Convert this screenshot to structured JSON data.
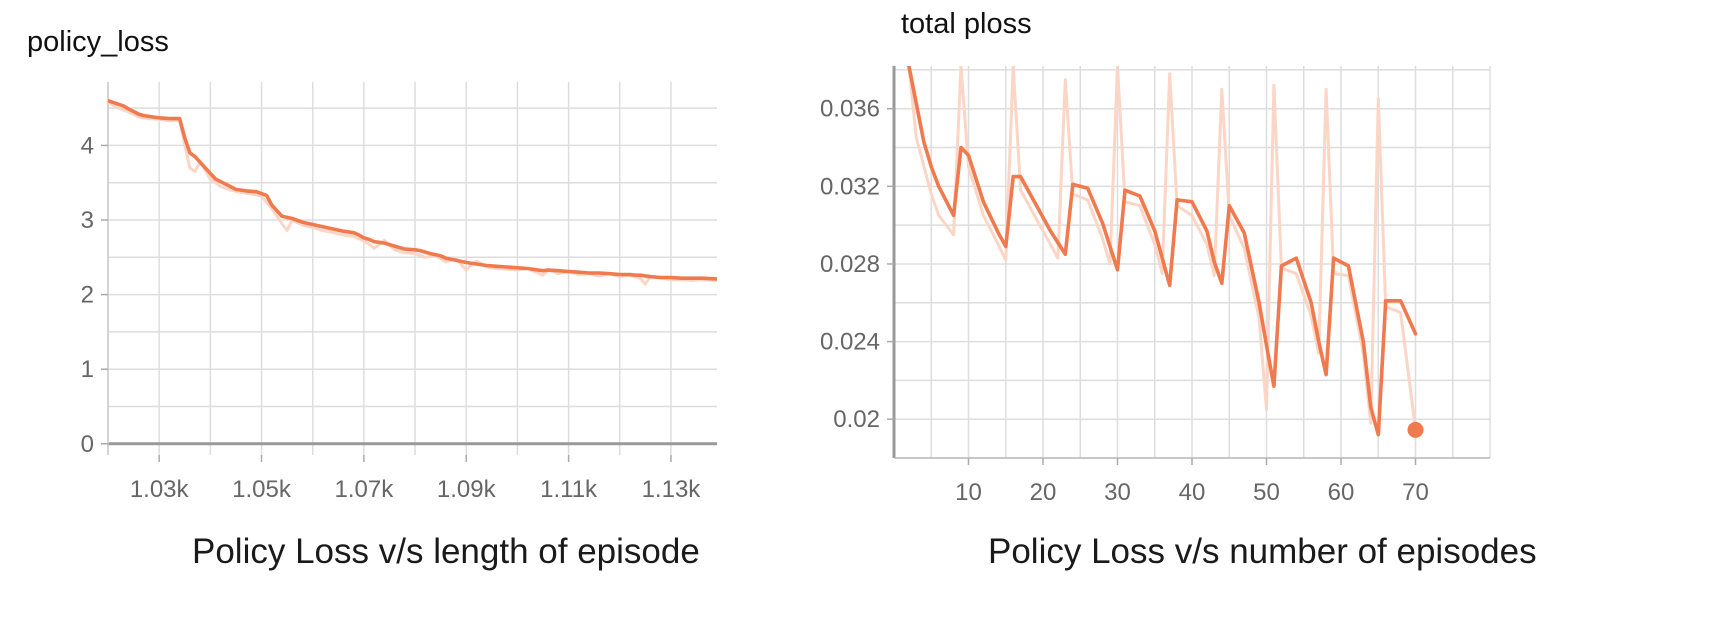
{
  "chart_data": [
    {
      "type": "line",
      "title": "policy_loss",
      "caption": "Policy Loss v/s length of episode",
      "xlabel": "",
      "ylabel": "",
      "xlim": [
        1020,
        1139
      ],
      "ylim": [
        -0.15,
        4.85
      ],
      "x_ticks": [
        1030,
        1050,
        1070,
        1090,
        1110,
        1130
      ],
      "x_tick_labels": [
        "1.03k",
        "1.05k",
        "1.07k",
        "1.09k",
        "1.11k",
        "1.13k"
      ],
      "y_ticks": [
        0,
        1,
        2,
        3,
        4
      ],
      "y_tick_labels": [
        "0",
        "1",
        "2",
        "3",
        "4"
      ],
      "grid": true,
      "colors": {
        "smoothed": "#f07a4e",
        "raw": "#fbd5c5",
        "zero_line": "#999999",
        "grid": "#dddddd"
      },
      "series": [
        {
          "role": "smoothed",
          "x": [
            1020,
            1023,
            1024,
            1026,
            1027,
            1029,
            1030,
            1032,
            1034,
            1035,
            1036,
            1037,
            1039,
            1041,
            1043,
            1045,
            1047,
            1049,
            1051,
            1052,
            1054,
            1056,
            1058,
            1060,
            1062,
            1064,
            1066,
            1068,
            1069,
            1070,
            1071,
            1072,
            1074,
            1076,
            1078,
            1080,
            1081,
            1083,
            1085,
            1086,
            1088,
            1090,
            1092,
            1094,
            1096,
            1098,
            1100,
            1102,
            1104,
            1105,
            1106,
            1108,
            1110,
            1112,
            1114,
            1116,
            1118,
            1120,
            1122,
            1123,
            1124,
            1126,
            1128,
            1130,
            1132,
            1134,
            1136,
            1139
          ],
          "y": [
            4.6,
            4.53,
            4.49,
            4.42,
            4.4,
            4.38,
            4.37,
            4.36,
            4.36,
            4.1,
            3.9,
            3.85,
            3.7,
            3.55,
            3.48,
            3.41,
            3.39,
            3.38,
            3.33,
            3.2,
            3.05,
            3.02,
            2.97,
            2.94,
            2.91,
            2.88,
            2.85,
            2.83,
            2.8,
            2.76,
            2.74,
            2.71,
            2.69,
            2.65,
            2.61,
            2.6,
            2.59,
            2.55,
            2.52,
            2.49,
            2.46,
            2.43,
            2.41,
            2.39,
            2.38,
            2.37,
            2.36,
            2.35,
            2.33,
            2.32,
            2.33,
            2.32,
            2.31,
            2.3,
            2.29,
            2.29,
            2.28,
            2.27,
            2.27,
            2.26,
            2.26,
            2.24,
            2.23,
            2.23,
            2.22,
            2.22,
            2.22,
            2.21
          ]
        },
        {
          "role": "raw",
          "x": [
            1020,
            1022,
            1024,
            1026,
            1028,
            1030,
            1032,
            1034,
            1035,
            1036,
            1037,
            1038,
            1040,
            1042,
            1044,
            1046,
            1048,
            1050,
            1052,
            1054,
            1055,
            1056,
            1058,
            1060,
            1062,
            1064,
            1066,
            1068,
            1070,
            1071,
            1072,
            1074,
            1076,
            1078,
            1080,
            1082,
            1084,
            1086,
            1088,
            1090,
            1091,
            1092,
            1094,
            1096,
            1098,
            1100,
            1102,
            1104,
            1105,
            1106,
            1108,
            1110,
            1112,
            1114,
            1116,
            1118,
            1120,
            1122,
            1124,
            1125,
            1126,
            1128,
            1130,
            1132,
            1134,
            1136,
            1139
          ],
          "y": [
            4.58,
            4.5,
            4.45,
            4.38,
            4.36,
            4.35,
            4.33,
            4.34,
            4.0,
            3.7,
            3.65,
            3.78,
            3.55,
            3.45,
            3.4,
            3.37,
            3.35,
            3.32,
            3.15,
            2.95,
            2.86,
            3.0,
            2.93,
            2.9,
            2.86,
            2.83,
            2.8,
            2.78,
            2.72,
            2.68,
            2.62,
            2.73,
            2.6,
            2.56,
            2.55,
            2.5,
            2.52,
            2.44,
            2.48,
            2.33,
            2.4,
            2.45,
            2.37,
            2.35,
            2.34,
            2.33,
            2.35,
            2.29,
            2.26,
            2.33,
            2.28,
            2.31,
            2.27,
            2.28,
            2.25,
            2.28,
            2.24,
            2.26,
            2.22,
            2.14,
            2.25,
            2.22,
            2.2,
            2.2,
            2.19,
            2.2,
            2.19
          ]
        }
      ]
    },
    {
      "type": "line",
      "title": "total ploss",
      "caption": "Policy Loss v/s number of episodes",
      "xlabel": "",
      "ylabel": "",
      "xlim": [
        0,
        80
      ],
      "ylim": [
        0.018,
        0.0382
      ],
      "x_ticks": [
        10,
        20,
        30,
        40,
        50,
        60,
        70
      ],
      "x_tick_labels": [
        "10",
        "20",
        "30",
        "40",
        "50",
        "60",
        "70"
      ],
      "y_ticks": [
        0.02,
        0.024,
        0.028,
        0.032,
        0.036
      ],
      "y_tick_labels": [
        "0.02",
        "0.024",
        "0.028",
        "0.032",
        "0.036"
      ],
      "grid": true,
      "colors": {
        "smoothed": "#f07a4e",
        "raw": "#fbd5c5",
        "grid": "#dddddd"
      },
      "series": [
        {
          "role": "smoothed",
          "x": [
            2,
            4,
            5,
            6,
            8,
            9,
            10,
            12,
            14,
            15,
            16,
            17,
            19,
            21,
            22,
            23,
            24,
            26,
            28,
            29,
            30,
            31,
            33,
            35,
            36,
            37,
            38,
            40,
            42,
            43,
            44,
            45,
            47,
            49,
            50,
            51,
            52,
            54,
            56,
            57,
            58,
            59,
            61,
            63,
            64,
            65,
            66,
            68,
            70
          ],
          "y": [
            0.0382,
            0.0343,
            0.033,
            0.032,
            0.0305,
            0.034,
            0.0336,
            0.0312,
            0.0296,
            0.0289,
            0.0325,
            0.0325,
            0.0311,
            0.0297,
            0.0291,
            0.0285,
            0.0321,
            0.0319,
            0.0301,
            0.0289,
            0.0277,
            0.0318,
            0.0315,
            0.0297,
            0.0283,
            0.0269,
            0.0313,
            0.0312,
            0.0297,
            0.0281,
            0.027,
            0.031,
            0.0296,
            0.026,
            0.0238,
            0.0217,
            0.0279,
            0.0283,
            0.026,
            0.024,
            0.0223,
            0.0283,
            0.0279,
            0.024,
            0.0206,
            0.0192,
            0.0261,
            0.0261,
            0.0244
          ]
        },
        {
          "role": "raw",
          "x": [
            2,
            3,
            5,
            6,
            8,
            9,
            10,
            12,
            14,
            15,
            16,
            17,
            19,
            21,
            22,
            23,
            24,
            26,
            28,
            29,
            30,
            31,
            33,
            35,
            36,
            37,
            38,
            40,
            42,
            43,
            44,
            45,
            47,
            49,
            50,
            51,
            52,
            54,
            56,
            57,
            58,
            59,
            61,
            63,
            64,
            65,
            66,
            68,
            70
          ],
          "y": [
            0.0382,
            0.0345,
            0.0316,
            0.0305,
            0.0295,
            0.0382,
            0.033,
            0.0305,
            0.029,
            0.0282,
            0.0382,
            0.0318,
            0.0304,
            0.029,
            0.0283,
            0.0375,
            0.0316,
            0.0313,
            0.0293,
            0.028,
            0.0382,
            0.0312,
            0.031,
            0.029,
            0.0275,
            0.0378,
            0.031,
            0.0305,
            0.029,
            0.0274,
            0.037,
            0.0305,
            0.0288,
            0.0252,
            0.0205,
            0.0372,
            0.0278,
            0.0275,
            0.0253,
            0.0234,
            0.037,
            0.0275,
            0.0274,
            0.0234,
            0.0198,
            0.0365,
            0.0258,
            0.0255,
            0.0195
          ]
        }
      ],
      "last_point": {
        "x": 70,
        "y": 0.01945
      }
    }
  ]
}
